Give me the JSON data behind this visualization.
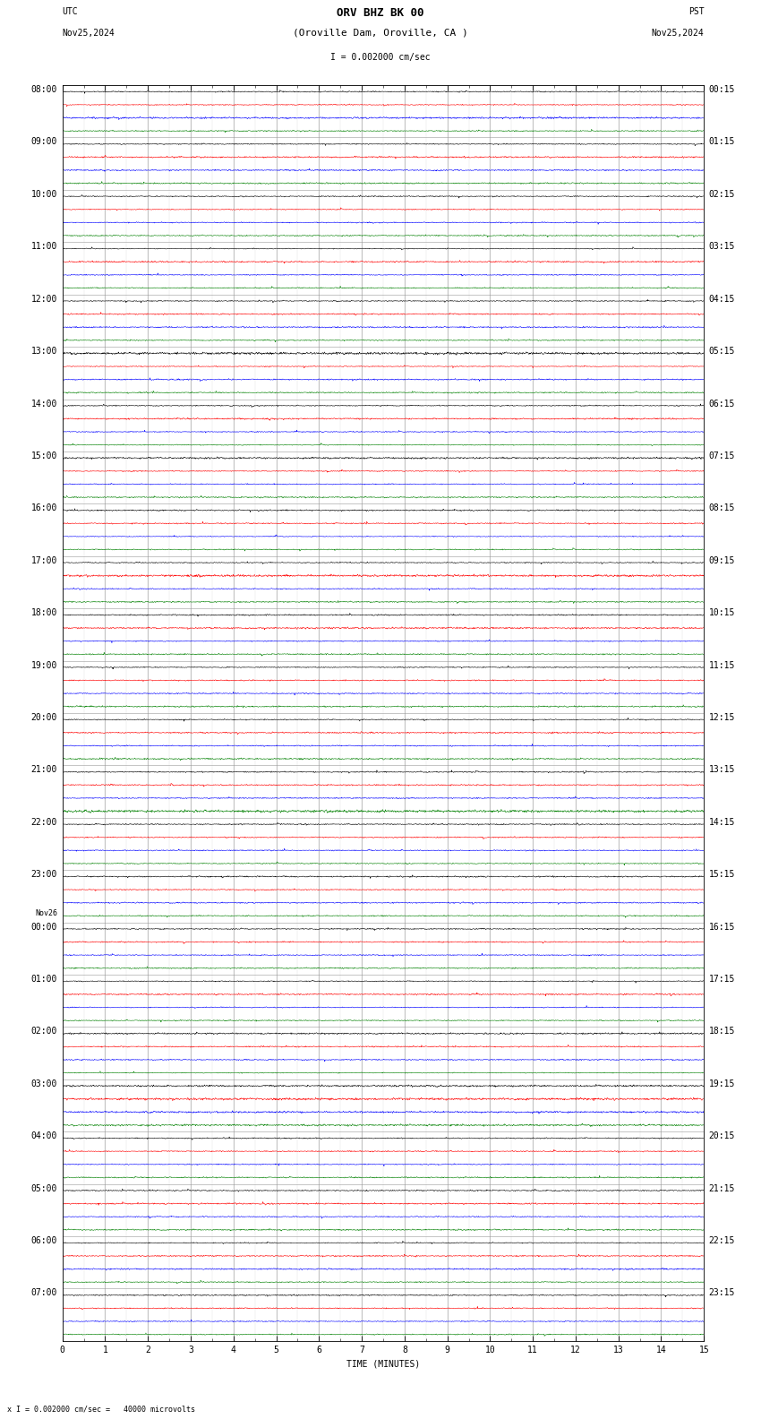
{
  "title_line1": "ORV BHZ BK 00",
  "title_line2": "(Oroville Dam, Oroville, CA )",
  "scale_label": "I = 0.002000 cm/sec",
  "utc_label": "UTC",
  "utc_date": "Nov25,2024",
  "pst_label": "PST",
  "pst_date": "Nov25,2024",
  "xlabel": "TIME (MINUTES)",
  "bottom_note": "x I = 0.002000 cm/sec =   40000 microvolts",
  "xmin": 0,
  "xmax": 15,
  "trace_colors": [
    "black",
    "red",
    "blue",
    "green"
  ],
  "background_color": "white",
  "utc_start_labels": [
    "08:00",
    "09:00",
    "10:00",
    "11:00",
    "12:00",
    "13:00",
    "14:00",
    "15:00",
    "16:00",
    "17:00",
    "18:00",
    "19:00",
    "20:00",
    "21:00",
    "22:00",
    "23:00",
    "00:00",
    "01:00",
    "02:00",
    "03:00",
    "04:00",
    "05:00",
    "06:00",
    "07:00"
  ],
  "pst_labels": [
    "00:15",
    "01:15",
    "02:15",
    "03:15",
    "04:15",
    "05:15",
    "06:15",
    "07:15",
    "08:15",
    "09:15",
    "10:15",
    "11:15",
    "12:15",
    "13:15",
    "14:15",
    "15:15",
    "16:15",
    "17:15",
    "18:15",
    "19:15",
    "20:15",
    "21:15",
    "22:15",
    "23:15"
  ],
  "utc_day_change_index": 16,
  "day_change_label": "Nov26",
  "n_hours": 24,
  "traces_per_hour": 4,
  "font_family": "monospace",
  "title_fontsize": 9,
  "label_fontsize": 7,
  "tick_fontsize": 7,
  "grid_color": "#999999",
  "trace_linewidth": 0.4,
  "n_samples": 2700
}
